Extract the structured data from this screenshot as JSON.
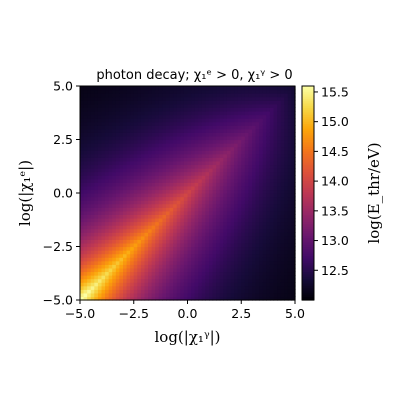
{
  "chart_data": {
    "type": "heatmap",
    "title": "photon decay; χ₁ᵉ > 0, χ₁ᵞ > 0",
    "xlabel": "log(|χ₁ᵞ|)",
    "ylabel": "log(|χ₁ᵉ|)",
    "xlim": [
      -5.0,
      5.0
    ],
    "ylim": [
      -5.0,
      5.0
    ],
    "x_ticks": [
      "−5.0",
      "−2.5",
      "0.0",
      "2.5",
      "5.0"
    ],
    "y_ticks": [
      "−5.0",
      "−2.5",
      "0.0",
      "2.5",
      "5.0"
    ],
    "x_tick_values": [
      -5.0,
      -2.5,
      0.0,
      2.5,
      5.0
    ],
    "y_tick_values": [
      -5.0,
      -2.5,
      0.0,
      2.5,
      5.0
    ],
    "colorbar": {
      "label": "log(E_thr/eV)",
      "range": [
        12.0,
        15.6
      ],
      "ticks": [
        "12.5",
        "13.0",
        "13.5",
        "14.0",
        "14.5",
        "15.0",
        "15.5"
      ],
      "tick_values": [
        12.5,
        13.0,
        13.5,
        14.0,
        14.5,
        15.0,
        15.5
      ],
      "colormap": "inferno"
    },
    "grid": false,
    "ridge": "maximum along the diagonal log(|χ₁ᵉ|) = log(|χ₁ᵞ|)",
    "corner_values": {
      "x=-5,y=-5": 15.6,
      "x=5,y=5": 12.2,
      "x=5,y=-5": 12.0,
      "x=-5,y=5": 12.1,
      "x=0,y=0": 14.0
    }
  }
}
